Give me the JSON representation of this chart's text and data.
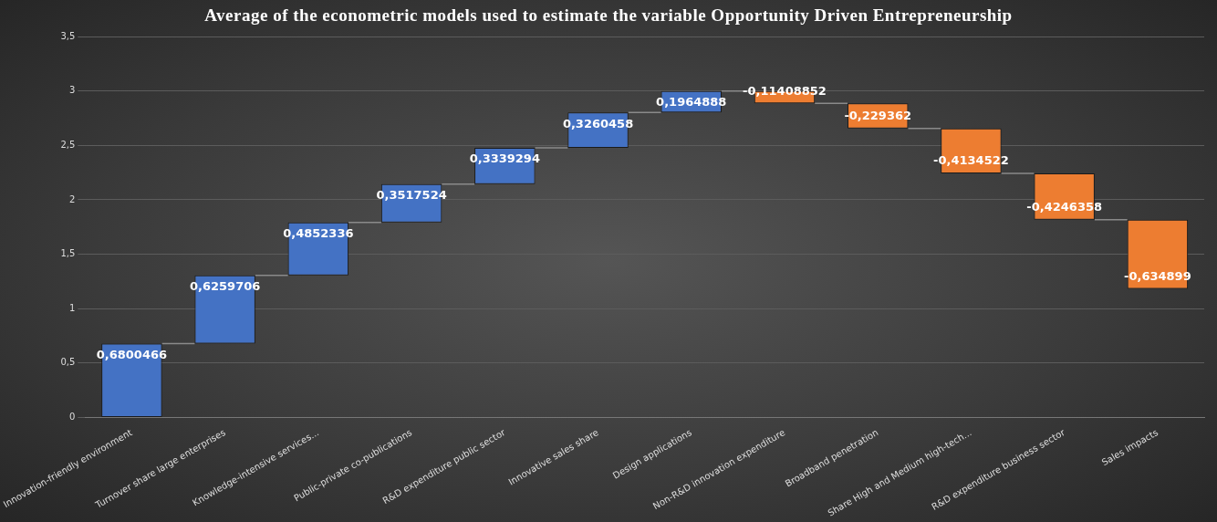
{
  "chart_data": {
    "type": "bar",
    "title": "Average of the econometric models used to estimate the variable Opportunity Driven Entrepreneurship",
    "categories": [
      "Innovation-friendly environment",
      "Turnover share large enterprises",
      "Knowledge-intensive services...",
      "Public-private co-publications",
      "R&D expenditure public sector",
      "Innovative sales share",
      "Design applications",
      "Non-R&D innovation expenditure",
      "Broadband penetration",
      "Share High and Medium high-tech...",
      "R&D expenditure business sector",
      "Sales impacts"
    ],
    "values": [
      0.6800466,
      0.6259706,
      0.4852336,
      0.3517524,
      0.3339294,
      0.3260458,
      0.1964888,
      -0.11408852,
      -0.229362,
      -0.4134522,
      -0.4246358,
      -0.634899
    ],
    "base": [
      0,
      0.6800466,
      1.3060172,
      1.7912508,
      2.1430032,
      2.4769326,
      2.8029784,
      2.9994672,
      2.88537868,
      2.65601668,
      2.24256448,
      1.81792868
    ],
    "colors": [
      "#4472c4",
      "#4472c4",
      "#4472c4",
      "#4472c4",
      "#4472c4",
      "#4472c4",
      "#4472c4",
      "#ed7d31",
      "#ed7d31",
      "#ed7d31",
      "#ed7d31",
      "#ed7d31"
    ],
    "value_labels": [
      "0,6800466",
      "0,6259706",
      "0,4852336",
      "0,3517524",
      "0,3339294",
      "0,3260458",
      "0,1964888",
      "-0,11408852",
      "-0,229362",
      "-0,4134522",
      "-0,4246358",
      "-0,634899"
    ],
    "ylim": [
      0,
      3.5
    ],
    "yticks": [
      {
        "value": 0,
        "label": "0"
      },
      {
        "value": 0.5,
        "label": "0,5"
      },
      {
        "value": 1,
        "label": "1"
      },
      {
        "value": 1.5,
        "label": "1,5"
      },
      {
        "value": 2,
        "label": "2"
      },
      {
        "value": 2.5,
        "label": "2,5"
      },
      {
        "value": 3,
        "label": "3"
      },
      {
        "value": 3.5,
        "label": "3,5"
      }
    ],
    "grid": "y"
  }
}
